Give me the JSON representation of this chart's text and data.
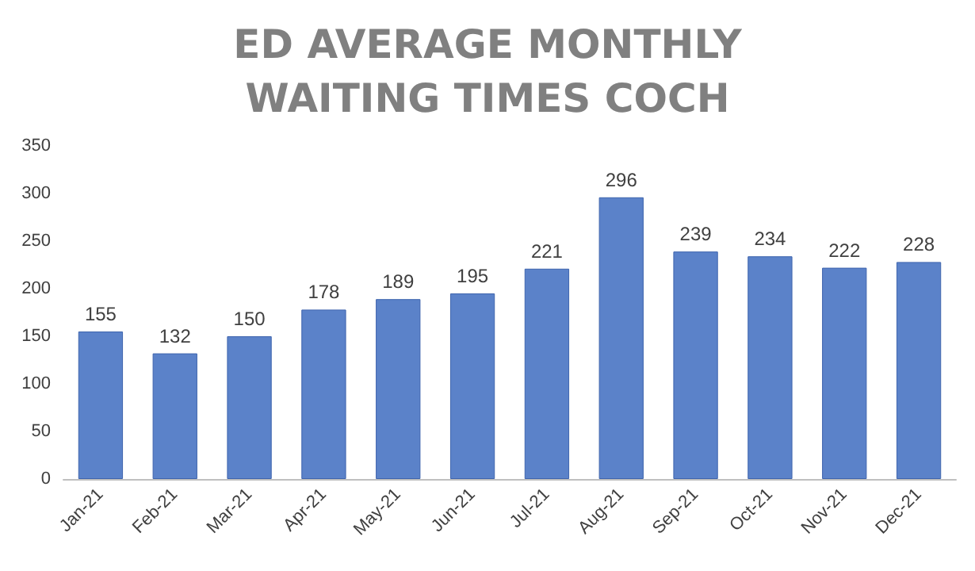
{
  "chart_data": {
    "type": "bar",
    "title": "ED AVERAGE MONTHLY\nWAITING TIMES COCH",
    "categories": [
      "Jan-21",
      "Feb-21",
      "Mar-21",
      "Apr-21",
      "May-21",
      "Jun-21",
      "Jul-21",
      "Aug-21",
      "Sep-21",
      "Oct-21",
      "Nov-21",
      "Dec-21"
    ],
    "values": [
      155,
      132,
      150,
      178,
      189,
      195,
      221,
      296,
      239,
      234,
      222,
      228
    ],
    "color": "#5b82c9",
    "ylim": [
      0,
      350
    ],
    "yticks": [
      0,
      50,
      100,
      150,
      200,
      250,
      300,
      350
    ],
    "grid": false,
    "data_labels": true
  }
}
